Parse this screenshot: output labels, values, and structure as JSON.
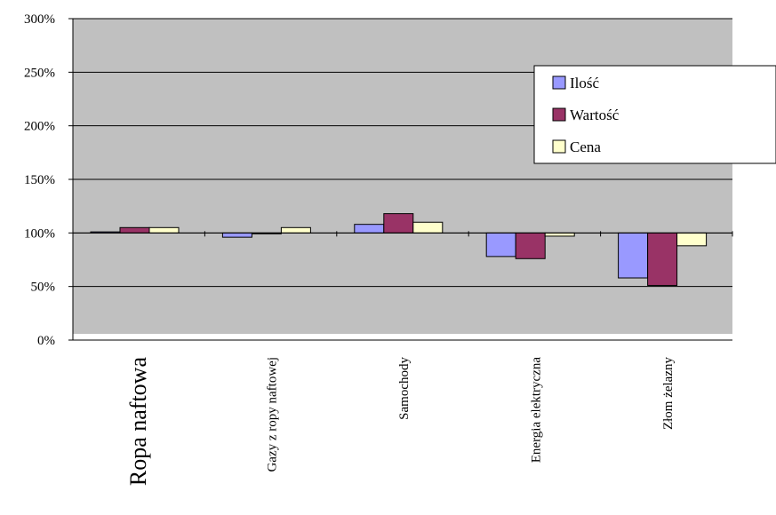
{
  "chart_data": {
    "type": "bar",
    "baseline": 100,
    "categories": [
      "Ropa naftowa",
      "Gazy z ropy naftowej",
      "Samochody",
      "Energia elektryczna",
      "Złom żelazny"
    ],
    "series": [
      {
        "name": "Ilość",
        "color": "#9999ff",
        "values": [
          101,
          96,
          108,
          78,
          58
        ]
      },
      {
        "name": "Wartość",
        "color": "#993366",
        "values": [
          105,
          100,
          118,
          76,
          51
        ]
      },
      {
        "name": "Cena",
        "color": "#ffffcc",
        "values": [
          105,
          105,
          110,
          97,
          88
        ]
      }
    ],
    "ylim": [
      0,
      300
    ],
    "yticks": [
      "0%",
      "50%",
      "100%",
      "150%",
      "200%",
      "250%",
      "300%"
    ],
    "ytick_values": [
      0,
      50,
      100,
      150,
      200,
      250,
      300
    ],
    "grid": true,
    "plot_background": "#c0c0c0",
    "legend_position": "right"
  }
}
